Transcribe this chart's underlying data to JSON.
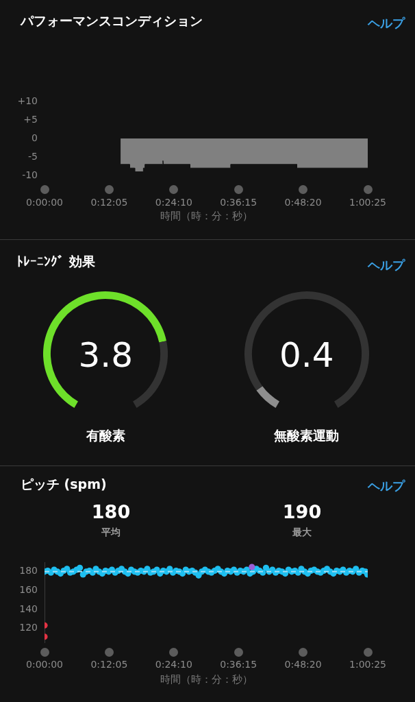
{
  "chart_data": [
    {
      "type": "area",
      "title": "パフォーマンスコンディション",
      "xlabel": "時間（時：分：秒）",
      "annotations": [
        "ヘルプ"
      ],
      "x": [
        0.237,
        0.265,
        0.265,
        0.281,
        0.281,
        0.308,
        0.308,
        0.313,
        0.313,
        0.368,
        0.369,
        0.37,
        0.453,
        0.453,
        0.58,
        0.58,
        0.786,
        0.786,
        1.00694
      ],
      "values": [
        -7,
        -7,
        -8,
        -8,
        -9,
        -9,
        -8,
        -8,
        -7,
        -7,
        -6,
        -7,
        -7,
        -8,
        -8,
        -7,
        -7,
        -8,
        -8
      ],
      "color": "#808080",
      "xlim": [
        0,
        1.00694
      ],
      "xticks": [
        {
          "value": 0,
          "label": "0:00:00"
        },
        {
          "value": 0.20139,
          "label": "0:12:05"
        },
        {
          "value": 0.40278,
          "label": "0:24:10"
        },
        {
          "value": 0.60417,
          "label": "0:36:15"
        },
        {
          "value": 0.80556,
          "label": "0:48:20"
        },
        {
          "value": 1.00694,
          "label": "1:00:25"
        }
      ],
      "ylim": [
        -10,
        10
      ],
      "yticks": [
        {
          "value": 10,
          "label": "+10"
        },
        {
          "value": 5,
          "label": "+5"
        },
        0,
        -5,
        -10
      ]
    },
    {
      "type": "donut",
      "title": "ﾄﾚｰﾆﾝｸﾞ 効果",
      "annotations": [
        "3.8",
        "有酸素"
      ],
      "categories": [
        null,
        null
      ],
      "values": [
        76,
        24
      ],
      "colors": [
        "#6ee02a",
        "#333333"
      ]
    },
    {
      "type": "donut",
      "annotations": [
        "0.4",
        "無酸素運動",
        "ヘルプ"
      ],
      "categories": [
        null,
        null
      ],
      "values": [
        8,
        92
      ],
      "colors": [
        "#8e8e8e",
        "#333333"
      ]
    },
    {
      "type": "scatter",
      "title": "ピッチ (spm)",
      "xlabel": "時間（時：分：秒）",
      "annotations": [
        "180",
        "平均",
        "190",
        "最大",
        "ヘルプ"
      ],
      "marker": "circle",
      "series": [
        {
          "color": "#e23344",
          "x": [
            0,
            0
          ],
          "values": [
            123,
            111
          ]
        },
        {
          "color": "#9b5fd6",
          "x": [
            0.646
          ],
          "values": [
            185
          ]
        },
        {
          "color": "#1fbff0",
          "x": [
            0,
            0.01,
            0.02,
            0.03,
            0.04,
            0.05,
            0.06,
            0.07,
            0.08,
            0.09,
            0.1,
            0.11,
            0.12,
            0.13,
            0.14,
            0.15,
            0.16,
            0.17,
            0.18,
            0.19,
            0.2,
            0.21,
            0.22,
            0.23,
            0.24,
            0.25,
            0.26,
            0.27,
            0.28,
            0.29,
            0.3,
            0.31,
            0.32,
            0.33,
            0.34,
            0.35,
            0.36,
            0.37,
            0.38,
            0.39,
            0.4,
            0.41,
            0.42,
            0.43,
            0.44,
            0.45,
            0.46,
            0.47,
            0.48,
            0.49,
            0.5,
            0.51,
            0.52,
            0.53,
            0.54,
            0.55,
            0.56,
            0.57,
            0.58,
            0.59,
            0.6,
            0.61,
            0.62,
            0.63,
            0.64,
            0.65,
            0.66,
            0.67,
            0.68,
            0.69,
            0.7,
            0.71,
            0.72,
            0.73,
            0.74,
            0.75,
            0.76,
            0.77,
            0.78,
            0.79,
            0.8,
            0.81,
            0.82,
            0.83,
            0.84,
            0.85,
            0.86,
            0.87,
            0.88,
            0.89,
            0.9,
            0.91,
            0.92,
            0.93,
            0.94,
            0.95,
            0.96,
            0.97,
            0.98,
            0.99,
            1,
            1.006
          ],
          "values": [
            180,
            181,
            179,
            182,
            180,
            178,
            181,
            183,
            179,
            180,
            182,
            184,
            177,
            180,
            181,
            179,
            183,
            180,
            178,
            181,
            180,
            182,
            179,
            181,
            183,
            180,
            178,
            182,
            180,
            179,
            181,
            180,
            183,
            179,
            180,
            182,
            178,
            181,
            180,
            183,
            179,
            181,
            180,
            178,
            182,
            180,
            181,
            179,
            176,
            180,
            182,
            180,
            179,
            181,
            183,
            180,
            178,
            181,
            180,
            182,
            179,
            181,
            180,
            182,
            178,
            180,
            183,
            181,
            179,
            184,
            180,
            182,
            179,
            181,
            180,
            178,
            182,
            180,
            181,
            179,
            183,
            180,
            178,
            181,
            182,
            180,
            179,
            181,
            183,
            180,
            178,
            181,
            180,
            182,
            179,
            181,
            180,
            183,
            179,
            181,
            180,
            177
          ]
        }
      ],
      "ref_lines": [
        {
          "axis": "y",
          "value": 180,
          "color": "#9fdcf2",
          "line_style": "dashed"
        }
      ],
      "xlim": [
        0,
        1.00694
      ],
      "xticks": [
        {
          "value": 0,
          "label": "0:00:00"
        },
        {
          "value": 0.20139,
          "label": "0:12:05"
        },
        {
          "value": 0.40278,
          "label": "0:24:10"
        },
        {
          "value": 0.60417,
          "label": "0:36:15"
        },
        {
          "value": 0.80556,
          "label": "0:48:20"
        },
        {
          "value": 1.00694,
          "label": "1:00:25"
        }
      ],
      "ylim": [
        105,
        190
      ],
      "yticks": [
        120,
        140,
        160,
        180
      ]
    }
  ]
}
